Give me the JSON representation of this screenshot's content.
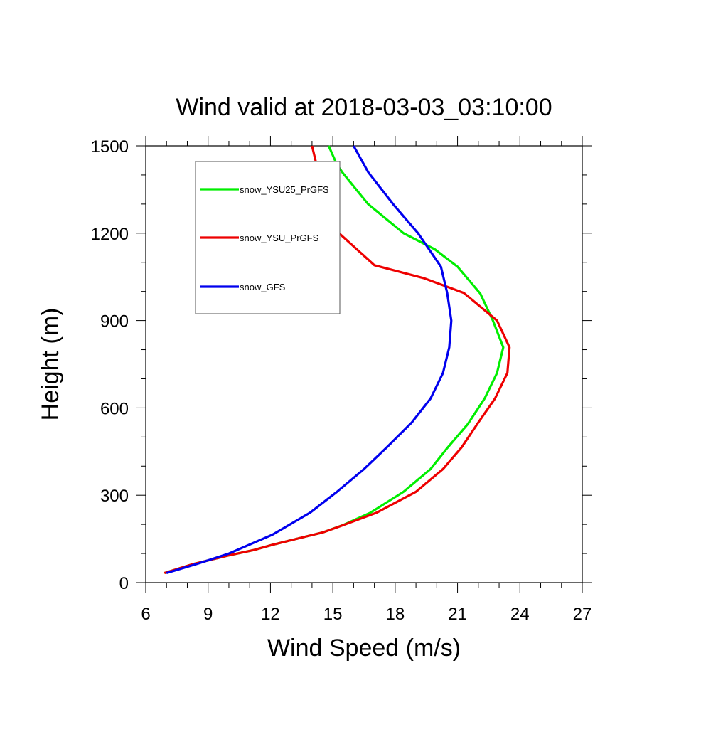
{
  "chart_data": {
    "type": "line",
    "title": "Wind valid at 2018-03-03_03:10:00",
    "xlabel": "Wind Speed (m/s)",
    "ylabel": "Height (m)",
    "xlim": [
      6,
      27
    ],
    "ylim": [
      0,
      1500
    ],
    "x_ticks": [
      6,
      9,
      12,
      15,
      18,
      21,
      24,
      27
    ],
    "y_ticks": [
      0,
      300,
      600,
      900,
      1200,
      1500
    ],
    "grid": false,
    "legend_position": "top-left",
    "series": [
      {
        "name": "snow_YSU25_PrGFS",
        "color": "#00ee00",
        "points": [
          [
            6.9,
            33
          ],
          [
            8.2,
            62
          ],
          [
            9.9,
            92
          ],
          [
            11.2,
            112
          ],
          [
            12.1,
            130
          ],
          [
            13.8,
            160
          ],
          [
            14.5,
            172
          ],
          [
            15.5,
            198
          ],
          [
            16.8,
            240
          ],
          [
            18.4,
            312
          ],
          [
            19.7,
            390
          ],
          [
            20.5,
            462
          ],
          [
            21.5,
            545
          ],
          [
            22.3,
            632
          ],
          [
            22.9,
            720
          ],
          [
            23.2,
            808
          ],
          [
            22.7,
            900
          ],
          [
            22.1,
            992
          ],
          [
            21.0,
            1085
          ],
          [
            19.9,
            1145
          ],
          [
            18.4,
            1200
          ],
          [
            16.7,
            1300
          ],
          [
            15.5,
            1405
          ],
          [
            15.2,
            1435
          ],
          [
            14.8,
            1500
          ]
        ]
      },
      {
        "name": "snow_YSU_PrGFS",
        "color": "#ee0000",
        "points": [
          [
            6.9,
            33
          ],
          [
            8.2,
            62
          ],
          [
            9.9,
            92
          ],
          [
            11.2,
            112
          ],
          [
            12.1,
            130
          ],
          [
            13.8,
            160
          ],
          [
            14.5,
            172
          ],
          [
            15.4,
            195
          ],
          [
            17.1,
            240
          ],
          [
            19.0,
            312
          ],
          [
            20.3,
            390
          ],
          [
            21.2,
            465
          ],
          [
            22.0,
            550
          ],
          [
            22.8,
            632
          ],
          [
            23.4,
            720
          ],
          [
            23.5,
            808
          ],
          [
            22.9,
            900
          ],
          [
            21.3,
            995
          ],
          [
            19.4,
            1045
          ],
          [
            17.0,
            1090
          ],
          [
            15.3,
            1200
          ],
          [
            14.6,
            1300
          ],
          [
            14.3,
            1410
          ],
          [
            14.0,
            1500
          ]
        ]
      },
      {
        "name": "snow_GFS",
        "color": "#0000ee",
        "points": [
          [
            7.0,
            33
          ],
          [
            8.5,
            65
          ],
          [
            10.0,
            100
          ],
          [
            12.1,
            165
          ],
          [
            13.9,
            240
          ],
          [
            15.2,
            312
          ],
          [
            16.5,
            390
          ],
          [
            17.6,
            465
          ],
          [
            18.8,
            550
          ],
          [
            19.7,
            632
          ],
          [
            20.3,
            720
          ],
          [
            20.6,
            808
          ],
          [
            20.7,
            900
          ],
          [
            20.5,
            995
          ],
          [
            20.2,
            1085
          ],
          [
            19.1,
            1200
          ],
          [
            17.9,
            1300
          ],
          [
            16.7,
            1410
          ],
          [
            16.0,
            1500
          ]
        ]
      }
    ]
  }
}
